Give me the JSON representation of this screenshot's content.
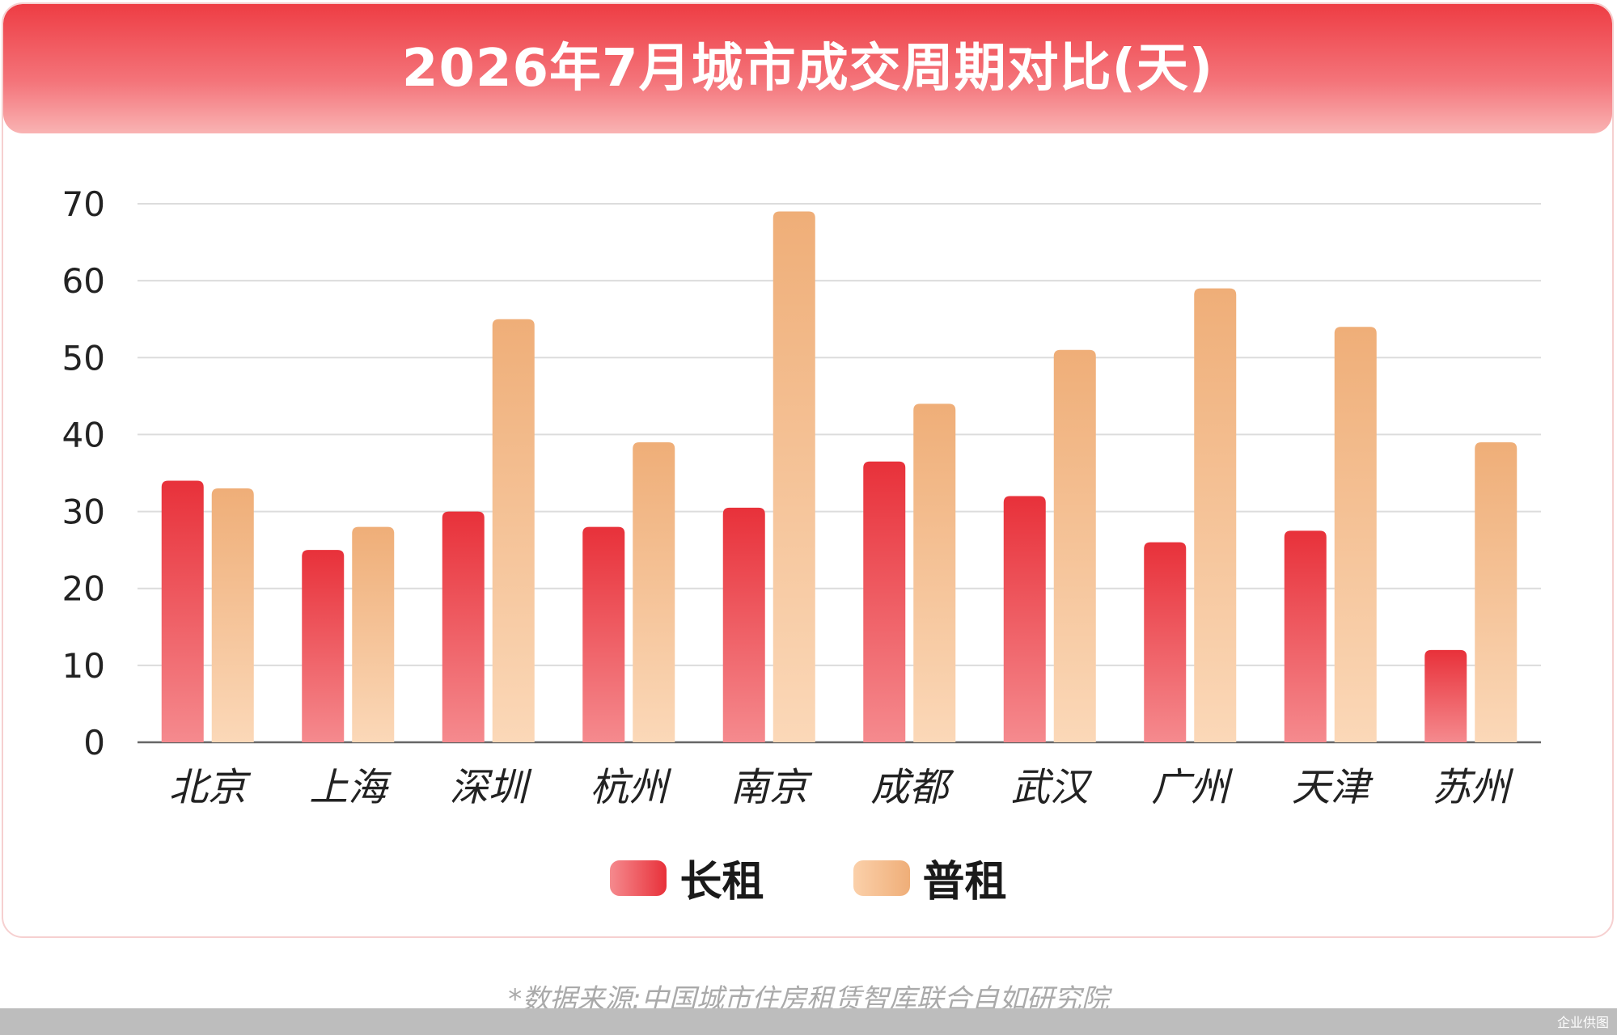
{
  "title": "2026年7月城市成交周期对比(天)",
  "source": "*数据来源:中国城市住房租赁智库联合自如研究院",
  "watermark": "企业供图",
  "legend": {
    "series1": "长租",
    "series2": "普租"
  },
  "colors": {
    "long_top": "#e8313a",
    "long_bottom": "#f58a8e",
    "normal_top": "#efae78",
    "normal_bottom": "#fbd8b8",
    "grid": "#dcdcdc",
    "axis": "#666666",
    "header": "#ee3d44"
  },
  "chart_data": {
    "type": "bar",
    "categories": [
      "北京",
      "上海",
      "深圳",
      "杭州",
      "南京",
      "成都",
      "武汉",
      "广州",
      "天津",
      "苏州"
    ],
    "series": [
      {
        "name": "长租",
        "values": [
          34,
          25,
          30,
          28,
          30.5,
          36.5,
          32,
          26,
          27.5,
          12
        ]
      },
      {
        "name": "普租",
        "values": [
          33,
          28,
          55,
          39,
          69,
          44,
          51,
          59,
          54,
          39
        ]
      }
    ],
    "yticks": [
      0,
      10,
      20,
      30,
      40,
      50,
      60,
      70
    ],
    "ylim": [
      0,
      70
    ],
    "grid": true,
    "legend_position": "bottom"
  }
}
